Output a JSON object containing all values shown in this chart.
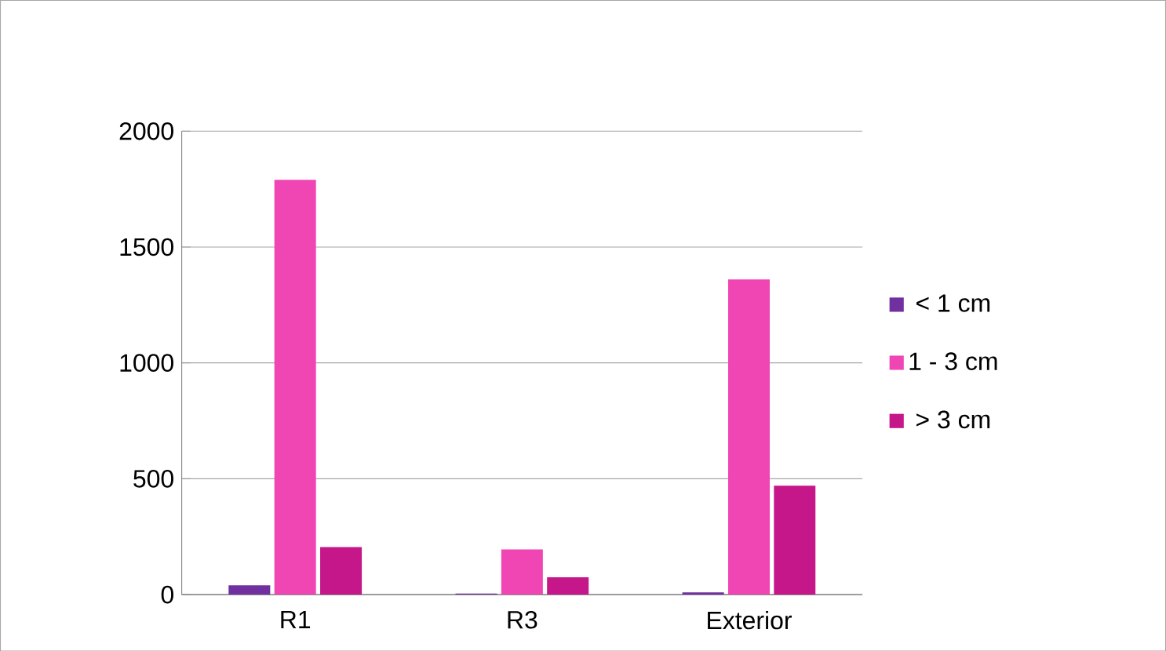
{
  "chart_data": {
    "type": "bar",
    "categories": [
      "R1",
      "R3",
      "Exterior"
    ],
    "series": [
      {
        "name": "< 1 cm",
        "color": "#7030a0",
        "values": [
          40,
          5,
          10
        ]
      },
      {
        "name": "1 - 3 cm",
        "color": "#f046b4",
        "values": [
          1790,
          195,
          1360
        ]
      },
      {
        "name": "> 3 cm",
        "color": "#c5168a",
        "values": [
          205,
          75,
          470
        ]
      }
    ],
    "ylim": [
      0,
      2000
    ],
    "yticks": [
      0,
      500,
      1000,
      1500,
      2000
    ],
    "grid": "y",
    "legend": "right"
  }
}
